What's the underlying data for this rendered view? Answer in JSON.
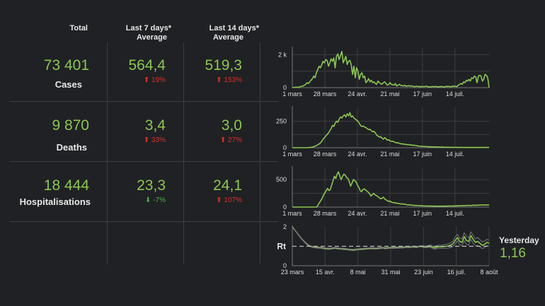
{
  "headers": {
    "total": "Total",
    "last7_line1": "Last 7 days*",
    "last7_line2": "Average",
    "last14_line1": "Last 14 days*",
    "last14_line2": "Average"
  },
  "rows": [
    {
      "label": "Cases",
      "total": "73 401",
      "avg7": "564,4",
      "avg7_change": "19%",
      "avg7_dir": "up",
      "avg14": "519,3",
      "avg14_change": "153%",
      "avg14_dir": "up"
    },
    {
      "label": "Deaths",
      "total": "9 870",
      "avg7": "3,4",
      "avg7_change": "33%",
      "avg7_dir": "up",
      "avg14": "3,0",
      "avg14_change": "27%",
      "avg14_dir": "up"
    },
    {
      "label": "Hospitalisations",
      "total": "18 444",
      "avg7": "23,3",
      "avg7_change": "-7%",
      "avg7_dir": "down",
      "avg14": "24,1",
      "avg14_change": "107%",
      "avg14_dir": "up"
    }
  ],
  "arrows": {
    "up": "⬆",
    "down": "⬇"
  },
  "rt": {
    "label": "Rt",
    "yesterday_label": "Yesterday",
    "yesterday_value": "1,16"
  },
  "colors": {
    "line": "#8cc653",
    "up": "#d9302c",
    "down": "#4caf50",
    "band": "#777777"
  },
  "chart_data": [
    {
      "type": "line",
      "title": "Cases",
      "x_tick_labels": [
        "1 mars",
        "28 mars",
        "24 avr.",
        "21 mai",
        "17 juin",
        "14 juil."
      ],
      "y_tick_labels": [
        "0",
        "2 k"
      ],
      "ylim": [
        0,
        2400
      ],
      "grid": true,
      "series": [
        {
          "name": "Cases",
          "values": [
            0,
            10,
            20,
            30,
            15,
            40,
            60,
            80,
            100,
            150,
            200,
            300,
            250,
            350,
            450,
            550,
            700,
            600,
            900,
            1100,
            1300,
            1200,
            1400,
            1600,
            1500,
            1700,
            1650,
            1300,
            1500,
            1750,
            1600,
            1800,
            1200,
            1900,
            2050,
            1700,
            1950,
            2200,
            1500,
            1700,
            1900,
            1400,
            1600,
            1650,
            1400,
            800,
            1300,
            600,
            1200,
            1000,
            500,
            800,
            900,
            600,
            700,
            300,
            400,
            550,
            350,
            450,
            300,
            350,
            250,
            200,
            400,
            300,
            250,
            200,
            300,
            350,
            250,
            150,
            200,
            300,
            200,
            180,
            150,
            250,
            100,
            150,
            200,
            130,
            120,
            100,
            150,
            80,
            100,
            120,
            90,
            110,
            80,
            60,
            70,
            90,
            60,
            70,
            50,
            80,
            60,
            70,
            90,
            60,
            50,
            40,
            60,
            70,
            50,
            80,
            40,
            60,
            50,
            70,
            60,
            50,
            40,
            90,
            60,
            80,
            50,
            60,
            100,
            70,
            90,
            60,
            150,
            200,
            250,
            200,
            350,
            300,
            450,
            400,
            500,
            400,
            600,
            550,
            700,
            650,
            300,
            700,
            750,
            700,
            400,
            500,
            800,
            750,
            600,
            0
          ]
        }
      ]
    },
    {
      "type": "line",
      "title": "Deaths",
      "x_tick_labels": [
        "1 mars",
        "28 mars",
        "24 avr.",
        "21 mai",
        "17 juin",
        "14 juil."
      ],
      "y_tick_labels": [
        "0",
        "250"
      ],
      "ylim": [
        0,
        380
      ],
      "grid": true,
      "series": [
        {
          "name": "Deaths",
          "values": [
            0,
            0,
            0,
            0,
            0,
            0,
            0,
            0,
            0,
            0,
            0,
            0,
            1,
            2,
            4,
            6,
            10,
            15,
            20,
            28,
            35,
            45,
            60,
            80,
            95,
            110,
            125,
            140,
            160,
            180,
            210,
            200,
            230,
            250,
            240,
            270,
            290,
            280,
            300,
            310,
            290,
            320,
            300,
            330,
            290,
            300,
            280,
            270,
            260,
            250,
            230,
            210,
            200,
            205,
            195,
            190,
            180,
            170,
            175,
            160,
            150,
            155,
            140,
            120,
            110,
            100,
            105,
            90,
            80,
            95,
            85,
            70,
            75,
            65,
            60,
            62,
            55,
            50,
            45,
            48,
            40,
            38,
            35,
            36,
            30,
            32,
            28,
            30,
            25,
            26,
            22,
            24,
            20,
            18,
            16,
            15,
            14,
            13,
            12,
            11,
            10,
            10,
            9,
            9,
            8,
            8,
            7,
            8,
            7,
            6,
            6,
            5,
            6,
            5,
            5,
            4,
            5,
            4,
            4,
            3,
            4,
            3,
            4,
            3,
            3,
            3,
            2,
            3,
            2,
            3,
            2,
            2,
            3,
            2,
            2,
            3,
            2,
            2,
            3,
            2,
            3,
            3,
            2,
            3,
            3,
            2,
            3,
            3
          ]
        }
      ]
    },
    {
      "type": "line",
      "title": "Hospitalisations",
      "x_tick_labels": [
        "1 mars",
        "28 mars",
        "24 avr.",
        "21 mai",
        "17 juin",
        "14 juil."
      ],
      "y_tick_labels": [
        "0",
        "500"
      ],
      "ylim": [
        0,
        720
      ],
      "grid": true,
      "series": [
        {
          "name": "Hospitalisations",
          "values": [
            0,
            0,
            0,
            0,
            0,
            0,
            0,
            0,
            0,
            0,
            0,
            0,
            0,
            0,
            0,
            0,
            0,
            0,
            0,
            40,
            80,
            120,
            160,
            220,
            260,
            300,
            340,
            300,
            320,
            400,
            480,
            560,
            520,
            600,
            640,
            560,
            500,
            560,
            600,
            580,
            540,
            520,
            460,
            380,
            440,
            500,
            480,
            460,
            400,
            360,
            300,
            280,
            320,
            330,
            310,
            290,
            270,
            240,
            200,
            230,
            250,
            220,
            210,
            190,
            170,
            150,
            160,
            180,
            150,
            130,
            120,
            100,
            110,
            90,
            80,
            85,
            70,
            75,
            65,
            60,
            55,
            60,
            50,
            55,
            45,
            40,
            42,
            38,
            35,
            33,
            30,
            32,
            28,
            26,
            25,
            24,
            22,
            20,
            21,
            20,
            19,
            18,
            19,
            18,
            17,
            18,
            17,
            16,
            17,
            18,
            16,
            17,
            18,
            17,
            19,
            18,
            20,
            19,
            18,
            20,
            22,
            20,
            24,
            22,
            26,
            24,
            28,
            25,
            30,
            28,
            32,
            30,
            28,
            35,
            33,
            30,
            36,
            34,
            38,
            36,
            40,
            38,
            36,
            40,
            38,
            42
          ]
        }
      ]
    },
    {
      "type": "line",
      "title": "Rt",
      "x_tick_labels": [
        "23 mars",
        "15 avr.",
        "8 mai",
        "31 mai",
        "23 juin",
        "16 juil.",
        "8 août"
      ],
      "y_tick_labels": [
        "0",
        "2"
      ],
      "ylim": [
        0,
        2
      ],
      "reference_line": 1,
      "grid": true,
      "series": [
        {
          "name": "Rt",
          "values": [
            2.0,
            1.85,
            1.7,
            1.55,
            1.4,
            1.28,
            1.16,
            1.06,
            1.0,
            0.97,
            0.95,
            0.94,
            0.93,
            0.92,
            0.9,
            0.88,
            0.87,
            0.88,
            0.9,
            0.91,
            0.89,
            0.88,
            0.87,
            0.86,
            0.85,
            0.83,
            0.82,
            0.81,
            0.83,
            0.84,
            0.85,
            0.86,
            0.87,
            0.88,
            0.89,
            0.9,
            0.89,
            0.88,
            0.9,
            0.91,
            0.92,
            0.9,
            0.91,
            0.92,
            0.93,
            0.92,
            0.94,
            0.93,
            0.95,
            0.94,
            0.96,
            0.97,
            0.95,
            0.98,
            0.97,
            0.96,
            0.99,
            1.0,
            0.98,
            0.97,
            0.99,
            1.01,
            0.95,
            0.92,
            0.96,
            0.98,
            0.97,
            0.99,
            1.0,
            1.02,
            1.06,
            1.12,
            1.3,
            1.45,
            1.25,
            1.2,
            1.5,
            1.3,
            1.25,
            1.55,
            1.35,
            1.2,
            1.25,
            1.15,
            1.05,
            1.1,
            1.2,
            1.16
          ]
        },
        {
          "name": "Rt upper",
          "values": [
            2.0,
            1.86,
            1.72,
            1.57,
            1.42,
            1.3,
            1.19,
            1.09,
            1.03,
            1.0,
            0.98,
            0.97,
            0.96,
            0.95,
            0.93,
            0.91,
            0.9,
            0.91,
            0.93,
            0.94,
            0.92,
            0.91,
            0.9,
            0.89,
            0.88,
            0.86,
            0.85,
            0.84,
            0.86,
            0.87,
            0.88,
            0.89,
            0.9,
            0.91,
            0.92,
            0.93,
            0.92,
            0.91,
            0.93,
            0.94,
            0.95,
            0.93,
            0.94,
            0.95,
            0.96,
            0.95,
            0.97,
            0.96,
            0.98,
            0.97,
            0.99,
            1.0,
            0.98,
            1.01,
            1.0,
            0.99,
            1.02,
            1.03,
            1.02,
            1.01,
            1.04,
            1.07,
            1.02,
            0.99,
            1.04,
            1.06,
            1.05,
            1.08,
            1.1,
            1.13,
            1.18,
            1.26,
            1.48,
            1.62,
            1.42,
            1.38,
            1.7,
            1.5,
            1.44,
            1.74,
            1.55,
            1.38,
            1.45,
            1.33,
            1.22,
            1.27,
            1.36,
            1.32
          ]
        },
        {
          "name": "Rt lower",
          "values": [
            2.0,
            1.84,
            1.68,
            1.53,
            1.38,
            1.26,
            1.13,
            1.03,
            0.97,
            0.94,
            0.92,
            0.91,
            0.9,
            0.89,
            0.87,
            0.85,
            0.84,
            0.85,
            0.87,
            0.88,
            0.86,
            0.85,
            0.84,
            0.83,
            0.82,
            0.8,
            0.79,
            0.78,
            0.8,
            0.81,
            0.82,
            0.83,
            0.84,
            0.85,
            0.86,
            0.87,
            0.86,
            0.85,
            0.87,
            0.88,
            0.89,
            0.87,
            0.88,
            0.89,
            0.9,
            0.89,
            0.91,
            0.9,
            0.92,
            0.91,
            0.93,
            0.94,
            0.92,
            0.95,
            0.94,
            0.93,
            0.96,
            0.97,
            0.94,
            0.93,
            0.94,
            0.95,
            0.88,
            0.85,
            0.88,
            0.9,
            0.89,
            0.9,
            0.9,
            0.91,
            0.94,
            0.98,
            1.12,
            1.28,
            1.08,
            1.02,
            1.3,
            1.1,
            1.06,
            1.36,
            1.15,
            1.02,
            1.05,
            0.97,
            0.88,
            0.93,
            1.04,
            1.0
          ]
        }
      ]
    }
  ]
}
